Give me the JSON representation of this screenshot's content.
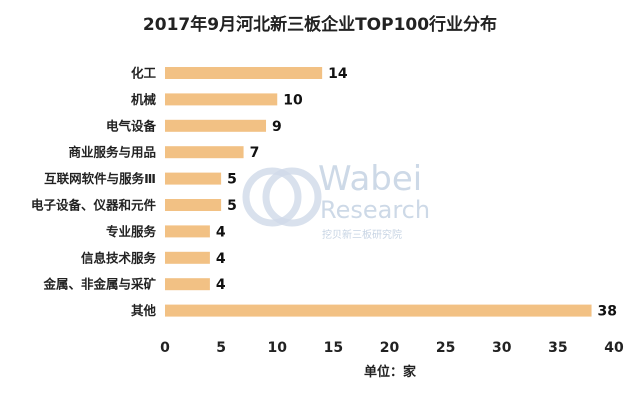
{
  "chart_data": {
    "type": "bar",
    "orientation": "horizontal",
    "title": "2017年9月河北新三板企业TOP100行业分布",
    "categories": [
      "化工",
      "机械",
      "电气设备",
      "商业服务与用品",
      "互联网软件与服务Ⅲ",
      "电子设备、仪器和元件",
      "专业服务",
      "信息技术服务",
      "金属、非金属与采矿",
      "其他"
    ],
    "values": [
      14,
      10,
      9,
      7,
      5,
      5,
      4,
      4,
      4,
      38
    ],
    "xlabel": "单位：家",
    "ylabel": "",
    "xlim": [
      0,
      40
    ],
    "xticks": [
      0,
      5,
      10,
      15,
      20,
      25,
      30,
      35,
      40
    ],
    "grid": false,
    "bar_color": "#f2c184"
  },
  "watermark": {
    "brand": "Wabei",
    "sub": "Research",
    "cn": "挖贝新三板研究院"
  }
}
